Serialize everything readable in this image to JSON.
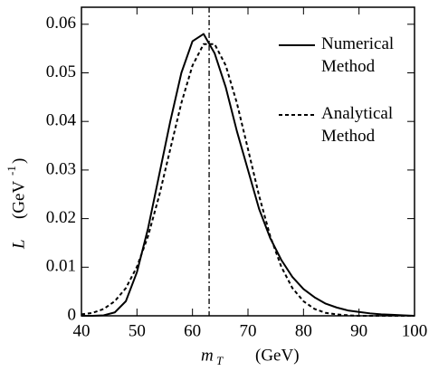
{
  "chart_data": {
    "type": "line",
    "x": [
      40,
      42,
      44,
      46,
      48,
      50,
      52,
      54,
      56,
      58,
      60,
      62,
      64,
      66,
      68,
      70,
      72,
      74,
      76,
      78,
      80,
      82,
      84,
      86,
      88,
      90,
      92,
      94,
      96,
      98,
      100
    ],
    "series": [
      {
        "name": "Numerical Method",
        "color": "#000000",
        "dash": "solid",
        "values": [
          0,
          0,
          0.0001,
          0.0007,
          0.003,
          0.009,
          0.018,
          0.029,
          0.04,
          0.05,
          0.0565,
          0.058,
          0.054,
          0.047,
          0.038,
          0.03,
          0.022,
          0.016,
          0.0115,
          0.008,
          0.0055,
          0.0038,
          0.0025,
          0.0017,
          0.0011,
          0.0008,
          0.0005,
          0.0003,
          0.0002,
          0.0001,
          0
        ]
      },
      {
        "name": "Analytical Method",
        "color": "#000000",
        "dash": "dashed",
        "values": [
          0.0003,
          0.0006,
          0.0014,
          0.003,
          0.0057,
          0.0101,
          0.0164,
          0.0247,
          0.0343,
          0.0438,
          0.0515,
          0.0559,
          0.0559,
          0.0515,
          0.0438,
          0.0343,
          0.0247,
          0.0164,
          0.0101,
          0.0057,
          0.003,
          0.0014,
          0.0006,
          0.0003,
          0.0001,
          0,
          0,
          0,
          0,
          0,
          0
        ]
      }
    ],
    "vline": 63,
    "xlabel": [
      "m",
      "T",
      "(GeV)"
    ],
    "ylabel": [
      "L",
      "(GeV",
      "-1",
      ")"
    ],
    "xlim": [
      40,
      100
    ],
    "ylim": [
      0,
      0.0635
    ],
    "xticks": [
      40,
      50,
      60,
      70,
      80,
      90,
      100
    ],
    "yticks": [
      0,
      0.01,
      0.02,
      0.03,
      0.04,
      0.05,
      0.06
    ]
  }
}
